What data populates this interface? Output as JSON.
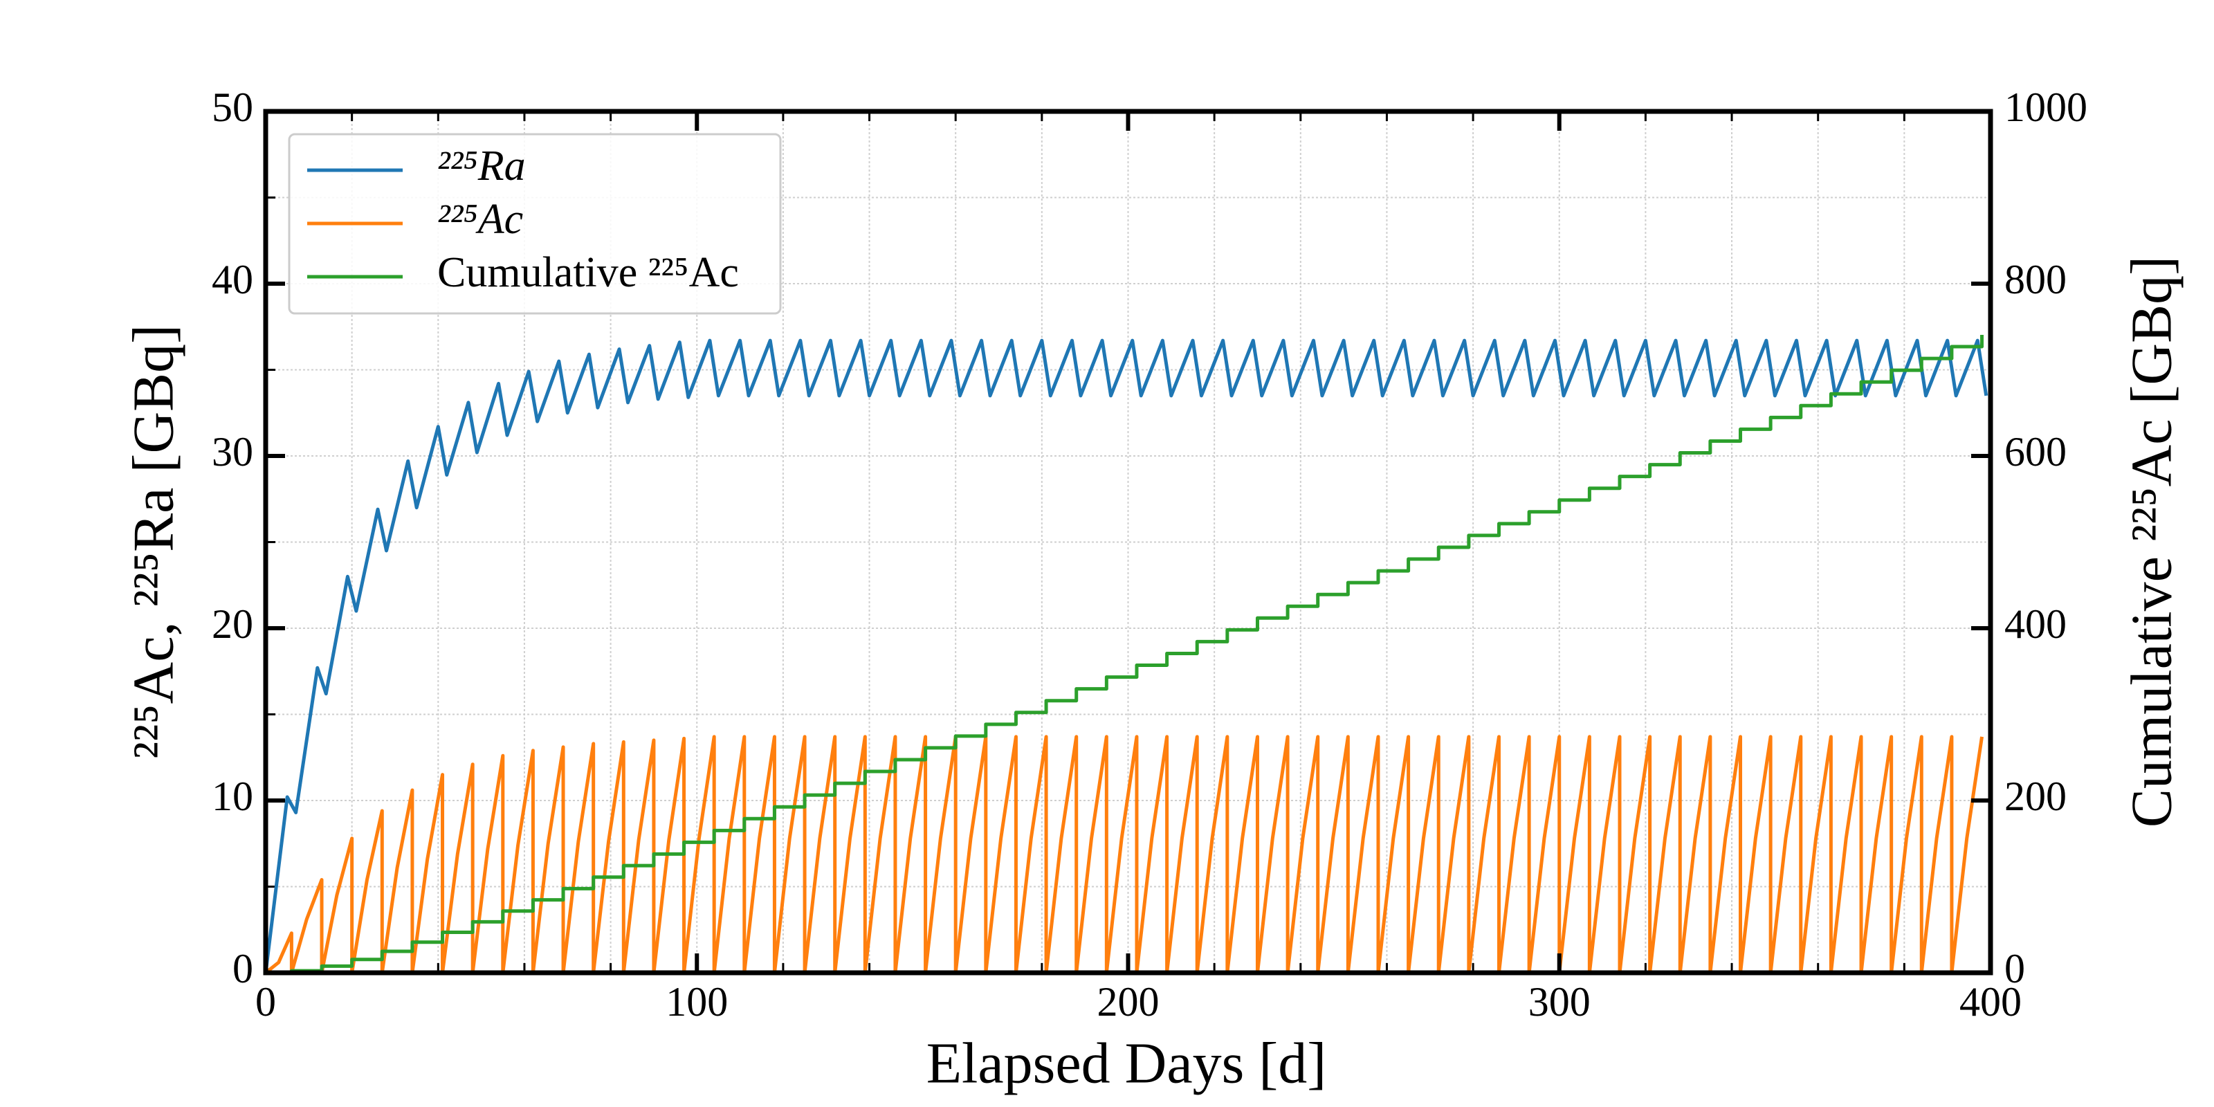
{
  "chart_data": {
    "type": "line",
    "xlabel": "Elapsed Days [d]",
    "ylabel": "²²⁵Ac,   ²²⁵Ra [GBq]",
    "y2label": "Cumulative ²²⁵Ac [GBq]",
    "xlim": [
      0,
      400
    ],
    "xticks": [
      0,
      100,
      200,
      300,
      400
    ],
    "xminor": [
      0,
      20,
      40,
      60,
      80,
      100,
      120,
      140,
      160,
      180,
      200,
      220,
      240,
      260,
      280,
      300,
      320,
      340,
      360,
      380,
      400
    ],
    "ylim": [
      0,
      50
    ],
    "yticks": [
      0,
      10,
      20,
      30,
      40,
      50
    ],
    "yminor": [
      0,
      5,
      10,
      15,
      20,
      25,
      30,
      35,
      40,
      45,
      50
    ],
    "y2lim": [
      0,
      1000
    ],
    "y2ticks": [
      0,
      200,
      400,
      600,
      800,
      1000
    ],
    "grid": true,
    "legend": "upper left",
    "series": [
      {
        "name": "²²⁵Ra",
        "color": "#1f77b4",
        "x": [
          0,
          5,
          7,
          12,
          14,
          19,
          21,
          26,
          28,
          33,
          35,
          40,
          42,
          47,
          49,
          54,
          56,
          61,
          63,
          68,
          70,
          75,
          77,
          82,
          84,
          89,
          91,
          96,
          98,
          103,
          105,
          110,
          112,
          117,
          119,
          124,
          126,
          131,
          133,
          138,
          140,
          145,
          147,
          152,
          154,
          159,
          161,
          166,
          168,
          173,
          175,
          180,
          182,
          187,
          189,
          194,
          196,
          201,
          203,
          208,
          210,
          215,
          217,
          222,
          224,
          229,
          231,
          236,
          238,
          243,
          245,
          250,
          252,
          257,
          259,
          264,
          266,
          271,
          273,
          278,
          280,
          285,
          287,
          292,
          294,
          299,
          301,
          306,
          308,
          313,
          315,
          320,
          322,
          327,
          329,
          334,
          336,
          341,
          343,
          348,
          350,
          355,
          357,
          362,
          364,
          369,
          371,
          376,
          378,
          383,
          385,
          390,
          392,
          397,
          399
        ],
        "values": [
          0,
          10.2,
          9.3,
          17.7,
          16.2,
          23,
          21,
          26.9,
          24.5,
          29.7,
          27,
          31.7,
          28.9,
          33.1,
          30.2,
          34.2,
          31.2,
          34.9,
          32,
          35.5,
          32.5,
          35.9,
          32.8,
          36.2,
          33.1,
          36.4,
          33.3,
          36.6,
          33.4,
          36.7,
          33.5,
          36.7,
          33.5,
          36.7,
          33.5,
          36.7,
          33.5,
          36.7,
          33.5,
          36.7,
          33.5,
          36.7,
          33.5,
          36.7,
          33.5,
          36.7,
          33.5,
          36.7,
          33.5,
          36.7,
          33.5,
          36.7,
          33.5,
          36.7,
          33.5,
          36.7,
          33.5,
          36.7,
          33.5,
          36.7,
          33.5,
          36.7,
          33.5,
          36.7,
          33.5,
          36.7,
          33.5,
          36.7,
          33.5,
          36.7,
          33.5,
          36.7,
          33.5,
          36.7,
          33.5,
          36.7,
          33.5,
          36.7,
          33.5,
          36.7,
          33.5,
          36.7,
          33.5,
          36.7,
          33.5,
          36.7,
          33.5,
          36.7,
          33.5,
          36.7,
          33.5,
          36.7,
          33.5,
          36.7,
          33.5,
          36.7,
          33.5,
          36.7,
          33.5,
          36.7,
          33.5,
          36.7,
          33.5,
          36.7,
          33.5,
          36.7,
          33.5,
          36.7,
          33.5,
          36.7,
          33.5,
          36.7,
          33.5,
          36.7,
          33.5
        ]
      },
      {
        "name": "²²⁵Ac",
        "color": "#ff7f0e",
        "x": [
          0,
          3,
          6,
          6,
          9.5,
          13,
          13,
          16.5,
          20,
          20,
          23.5,
          27,
          27,
          30.5,
          34,
          34,
          37.5,
          41,
          41,
          44.5,
          48,
          48,
          51.5,
          55,
          55,
          58.5,
          62,
          62,
          65.5,
          69,
          69,
          72.5,
          76,
          76,
          79.5,
          83,
          83,
          86.5,
          90,
          90,
          93.5,
          97,
          97,
          100.5,
          104,
          104,
          107.5,
          111,
          111,
          114.5,
          118,
          118,
          121.5,
          125,
          125,
          128.5,
          132,
          132,
          135.5,
          139,
          139,
          142.5,
          146,
          146,
          149.5,
          153,
          153,
          156.5,
          160,
          160,
          163.5,
          167,
          167,
          170.5,
          174,
          174,
          177.5,
          181,
          181,
          184.5,
          188,
          188,
          191.5,
          195,
          195,
          198.5,
          202,
          202,
          205.5,
          209,
          209,
          212.5,
          216,
          216,
          219.5,
          223,
          223,
          226.5,
          230,
          230,
          233.5,
          237,
          237,
          240.5,
          244,
          244,
          247.5,
          251,
          251,
          254.5,
          258,
          258,
          261.5,
          265,
          265,
          268.5,
          272,
          272,
          275.5,
          279,
          279,
          282.5,
          286,
          286,
          289.5,
          293,
          293,
          296.5,
          300,
          300,
          303.5,
          307,
          307,
          310.5,
          314,
          314,
          317.5,
          321,
          321,
          324.5,
          328,
          328,
          331.5,
          335,
          335,
          338.5,
          342,
          342,
          345.5,
          349,
          349,
          352.5,
          356,
          356,
          359.5,
          363,
          363,
          366.5,
          370,
          370,
          373.5,
          377,
          377,
          380.5,
          384,
          384,
          387.5,
          391,
          391,
          394.5,
          398
        ],
        "values": [
          0,
          0.6,
          2.3,
          0,
          3.1,
          5.4,
          0,
          4.5,
          7.8,
          0,
          5.4,
          9.4,
          0,
          6.1,
          10.6,
          0,
          6.6,
          11.5,
          0,
          6.9,
          12.1,
          0,
          7.2,
          12.6,
          0,
          7.4,
          12.9,
          0,
          7.5,
          13.1,
          0,
          7.6,
          13.3,
          0,
          7.6,
          13.4,
          0,
          7.7,
          13.5,
          0,
          7.7,
          13.6,
          0,
          7.8,
          13.7,
          0,
          7.8,
          13.7,
          0,
          7.8,
          13.7,
          0,
          7.8,
          13.7,
          0,
          7.8,
          13.7,
          0,
          7.8,
          13.7,
          0,
          7.8,
          13.7,
          0,
          7.8,
          13.7,
          0,
          7.8,
          13.7,
          0,
          7.8,
          13.7,
          0,
          7.8,
          13.7,
          0,
          7.8,
          13.7,
          0,
          7.8,
          13.7,
          0,
          7.8,
          13.7,
          0,
          7.8,
          13.7,
          0,
          7.8,
          13.7,
          0,
          7.8,
          13.7,
          0,
          7.8,
          13.7,
          0,
          7.8,
          13.7,
          0,
          7.8,
          13.7,
          0,
          7.8,
          13.7,
          0,
          7.8,
          13.7,
          0,
          7.8,
          13.7,
          0,
          7.8,
          13.7,
          0,
          7.8,
          13.7,
          0,
          7.8,
          13.7,
          0,
          7.8,
          13.7,
          0,
          7.8,
          13.7,
          0,
          7.8,
          13.7,
          0,
          7.8,
          13.7,
          0,
          7.8,
          13.7,
          0,
          7.8,
          13.7,
          0,
          7.8,
          13.7,
          0,
          7.8,
          13.7,
          0,
          7.8,
          13.7,
          0,
          7.8,
          13.7,
          0,
          7.8,
          13.7,
          0,
          7.8,
          13.7,
          0,
          7.8,
          13.7,
          0,
          7.8,
          13.7,
          0,
          7.8,
          13.7,
          0,
          7.8,
          13.7,
          0,
          7.8,
          13.7
        ]
      },
      {
        "name": "Cumulative ²²⁵Ac",
        "color": "#2ca02c",
        "axis": "y2",
        "drawstyle": "steps-post",
        "x": [
          0,
          6,
          13,
          20,
          27,
          34,
          41,
          48,
          55,
          62,
          69,
          76,
          83,
          90,
          97,
          104,
          111,
          118,
          125,
          132,
          139,
          146,
          153,
          160,
          167,
          174,
          181,
          188,
          195,
          202,
          209,
          216,
          223,
          230,
          237,
          244,
          251,
          258,
          265,
          272,
          279,
          286,
          293,
          300,
          307,
          314,
          321,
          328,
          335,
          342,
          349,
          356,
          363,
          370,
          377,
          384,
          391,
          398
        ],
        "values": [
          0,
          2.3,
          7.7,
          15.5,
          24.9,
          35.5,
          47,
          59.1,
          71.7,
          84.6,
          97.7,
          111,
          124.4,
          137.9,
          151.5,
          165.2,
          178.9,
          192.6,
          206.3,
          220,
          233.7,
          247.4,
          261.1,
          274.8,
          288.5,
          302.2,
          315.9,
          329.6,
          343.3,
          357,
          370.7,
          384.4,
          398.1,
          411.8,
          425.5,
          439.2,
          452.9,
          466.6,
          480.3,
          494,
          507.7,
          521.4,
          535.1,
          548.8,
          562.5,
          576.2,
          589.9,
          603.6,
          617.3,
          631,
          644.7,
          658.4,
          672.1,
          685.8,
          699.5,
          713.2,
          726.9,
          740.6
        ]
      }
    ]
  }
}
